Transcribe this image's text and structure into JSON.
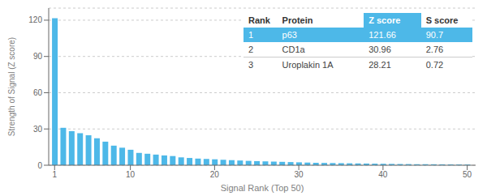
{
  "chart_data": {
    "type": "bar",
    "xlabel": "Signal Rank (Top 50)",
    "ylabel": "Strength of Signal (Z score)",
    "x": [
      1,
      2,
      3,
      4,
      5,
      6,
      7,
      8,
      9,
      10,
      11,
      12,
      13,
      14,
      15,
      16,
      17,
      18,
      19,
      20,
      21,
      22,
      23,
      24,
      25,
      26,
      27,
      28,
      29,
      30,
      31,
      32,
      33,
      34,
      35,
      36,
      37,
      38,
      39,
      40,
      41,
      42,
      43,
      44,
      45,
      46,
      47,
      48,
      49,
      50
    ],
    "values": [
      121.66,
      30.96,
      28.21,
      26.5,
      24.8,
      22.3,
      19.5,
      16.2,
      14.5,
      12.8,
      10.2,
      9.5,
      8.8,
      8.1,
      7.6,
      6.5,
      6.0,
      5.5,
      5.2,
      4.9,
      4.5,
      4.2,
      3.9,
      3.6,
      3.4,
      3.2,
      3.0,
      2.8,
      2.6,
      2.4,
      2.2,
      2.0,
      1.9,
      1.8,
      1.7,
      1.6,
      1.5,
      1.4,
      1.3,
      1.2,
      1.1,
      1.0,
      0.95,
      0.9,
      0.85,
      0.8,
      0.75,
      0.7,
      0.65,
      0.6
    ],
    "color": "#4db8e8",
    "xlim": [
      0.3,
      51
    ],
    "xticks": [
      1,
      10,
      20,
      30,
      40,
      50
    ],
    "ylim": [
      0,
      130
    ],
    "yticks": [
      0,
      30,
      60,
      90,
      120
    ],
    "grid": true,
    "table": {
      "headers": [
        "Rank",
        "Protein",
        "Z score",
        "S score"
      ],
      "rows": [
        [
          "1",
          "p63",
          "121.66",
          "90.7"
        ],
        [
          "2",
          "CD1a",
          "30.96",
          "2.76"
        ],
        [
          "3",
          "Uroplakin 1A",
          "28.21",
          "0.72"
        ]
      ]
    }
  }
}
